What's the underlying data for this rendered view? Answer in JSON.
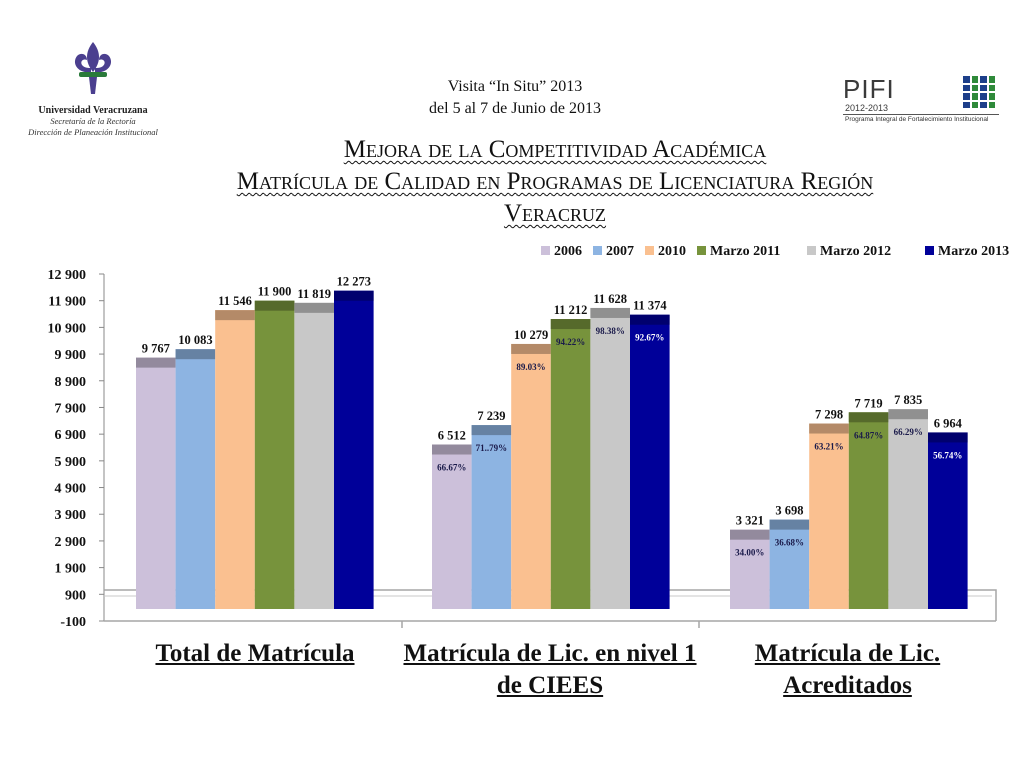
{
  "header": {
    "university": "Universidad Veracruzana",
    "subtitle1": "Secretaría de la Rectoría",
    "subtitle2": "Dirección de Planeación Institucional",
    "visit_line1": "Visita “In Situ”  2013",
    "visit_line2": "del 5 al 7 de Junio de 2013",
    "pifi_word": "PIFI",
    "pifi_years": "2012-2013",
    "pifi_program": "Programa Integral de Fortalecimiento Institucional"
  },
  "title": {
    "line1": "Mejora de la Competitividad Académica",
    "line2": "Matrícula de Calidad en Programas de Licenciatura Región",
    "line3": "Veracruz"
  },
  "colors": {
    "2006": "#ccc0da",
    "2007": "#8db4e2",
    "2010": "#fac090",
    "Marzo 2011": "#77933c",
    "Marzo 2012": "#c8c8c8",
    "Marzo 2013": "#000099"
  },
  "chart_data": {
    "type": "bar",
    "categories": [
      "Total de Matrícula",
      "Matrícula de  Lic. en nivel 1 de CIEES",
      "Matrícula de  Lic. Acreditados"
    ],
    "series": [
      {
        "name": "2006",
        "values": [
          9767,
          6512,
          3321
        ],
        "value_labels": [
          "9 767",
          "6 512",
          "3 321"
        ],
        "pct_labels": [
          "",
          "66.67%",
          "34.00%"
        ]
      },
      {
        "name": "2007",
        "values": [
          10083,
          7239,
          3698
        ],
        "value_labels": [
          "10 083",
          "7 239",
          "3 698"
        ],
        "pct_labels": [
          "",
          "71..79%",
          "36.68%"
        ]
      },
      {
        "name": "2010",
        "values": [
          11546,
          10279,
          7298
        ],
        "value_labels": [
          "11 546",
          "10 279",
          "7 298"
        ],
        "pct_labels": [
          "",
          "89.03%",
          "63.21%"
        ]
      },
      {
        "name": "Marzo 2011",
        "values": [
          11900,
          11212,
          7719
        ],
        "value_labels": [
          "11 900",
          "11 212",
          "7 719"
        ],
        "pct_labels": [
          "",
          "94.22%",
          "64.87%"
        ]
      },
      {
        "name": "Marzo 2012",
        "values": [
          11819,
          11628,
          7835
        ],
        "value_labels": [
          "11 819",
          "11 628",
          "7 835"
        ],
        "pct_labels": [
          "",
          "98.38%",
          "66.29%"
        ]
      },
      {
        "name": "Marzo 2013",
        "values": [
          12273,
          11374,
          6964
        ],
        "value_labels": [
          "12 273",
          "11 374",
          "6 964"
        ],
        "pct_labels": [
          "",
          "92.67%",
          "56.74%"
        ]
      }
    ],
    "ylim": [
      -100,
      12900
    ],
    "yticks": [
      -100,
      900,
      1900,
      2900,
      3900,
      4900,
      5900,
      6900,
      7900,
      8900,
      9900,
      10900,
      11900,
      12900
    ],
    "ytick_labels": [
      "-100",
      "900",
      "1 900",
      "2 900",
      "3 900",
      "4 900",
      "5 900",
      "6 900",
      "7 900",
      "8 900",
      "9 900",
      "10 900",
      "11 900",
      "12 900"
    ],
    "legend_position": "top-right",
    "grid": false
  }
}
